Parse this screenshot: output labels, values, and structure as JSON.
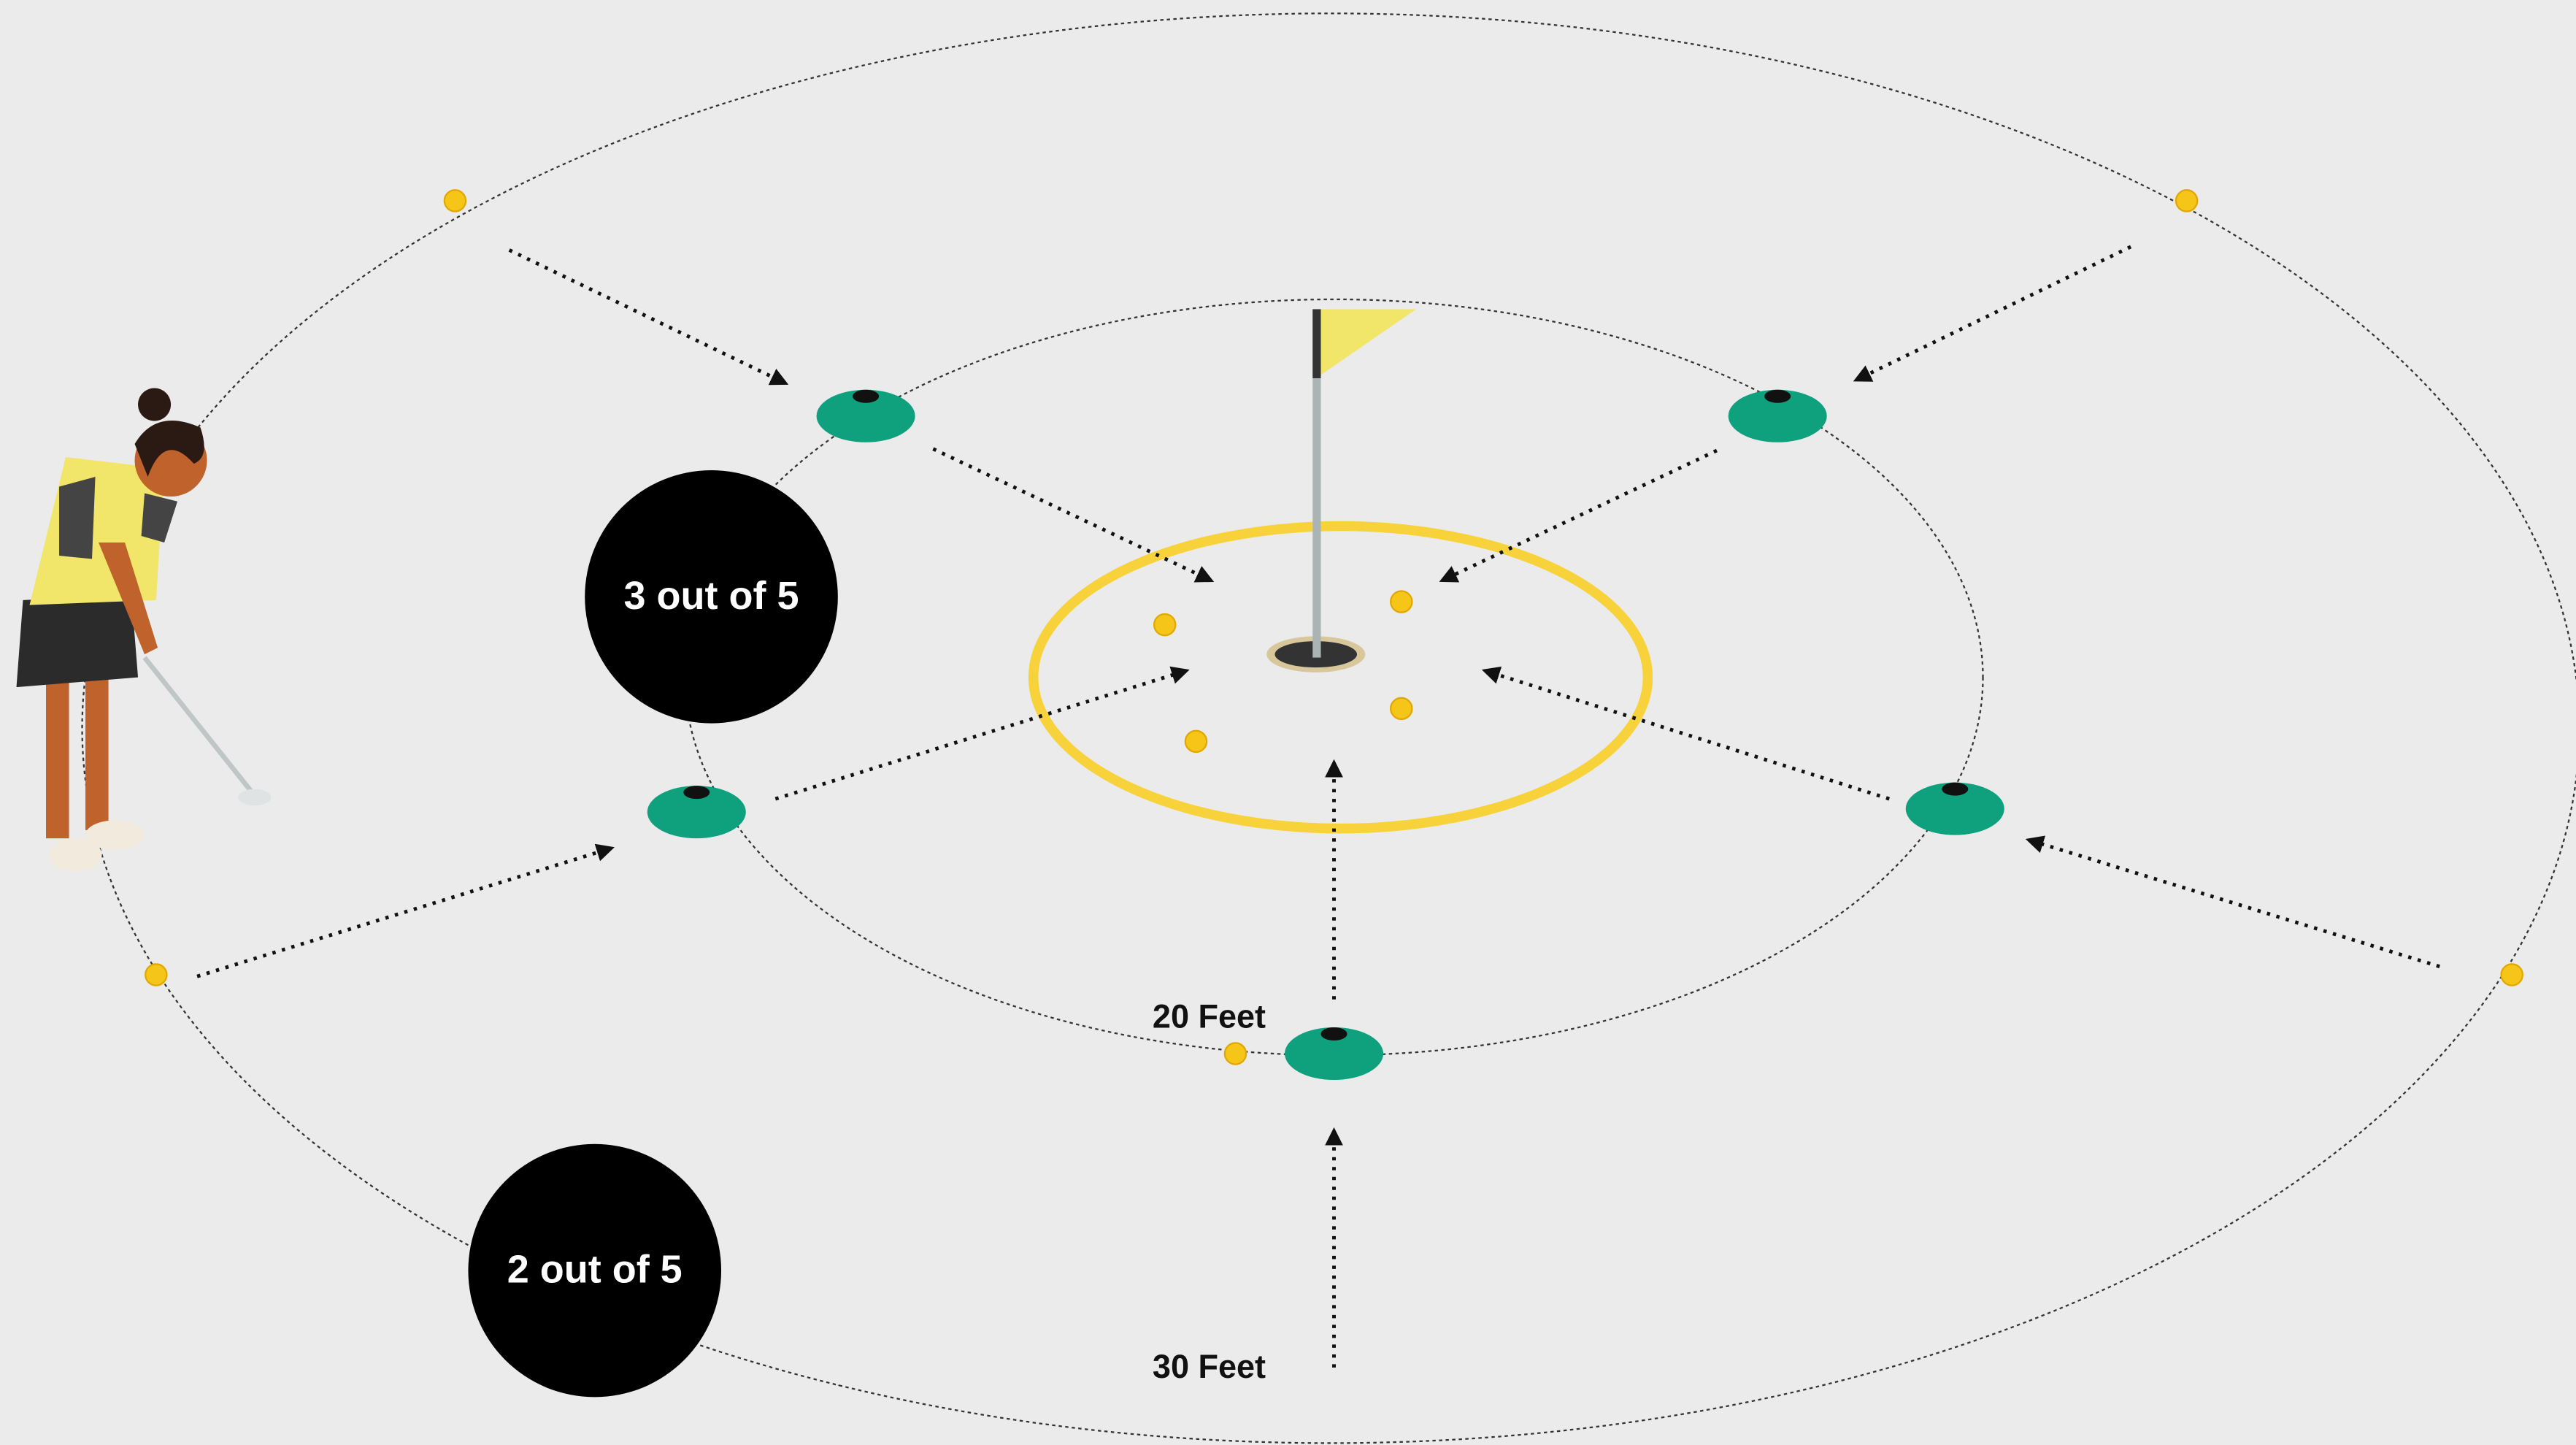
{
  "inner_ring": {
    "distance": "20 Feet",
    "goal": "3 out of 5"
  },
  "outer_ring": {
    "distance": "30 Feet",
    "goal": "2 out of 5"
  }
}
